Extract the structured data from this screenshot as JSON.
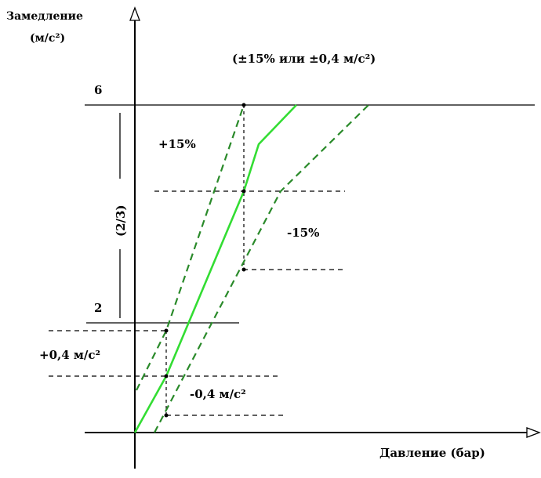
{
  "labels": {
    "y_axis_line1": "Замедление",
    "y_axis_line2": "(м/с²)",
    "x_axis": "Давление (бар)",
    "tolerance_note": "(±15% или ±0,4 м/с²)",
    "level_high": "6",
    "level_low": "2",
    "plus_pct": "+15%",
    "minus_pct": "-15%",
    "plus_abs": "+0,4 м/с²",
    "minus_abs": "-0,4 м/с²",
    "ratio": "(2/3)"
  },
  "colors": {
    "main_curve": "#33dd33",
    "tolerance_curves": "#2a8a2a",
    "axes": "#000000",
    "guides": "#000000"
  }
}
